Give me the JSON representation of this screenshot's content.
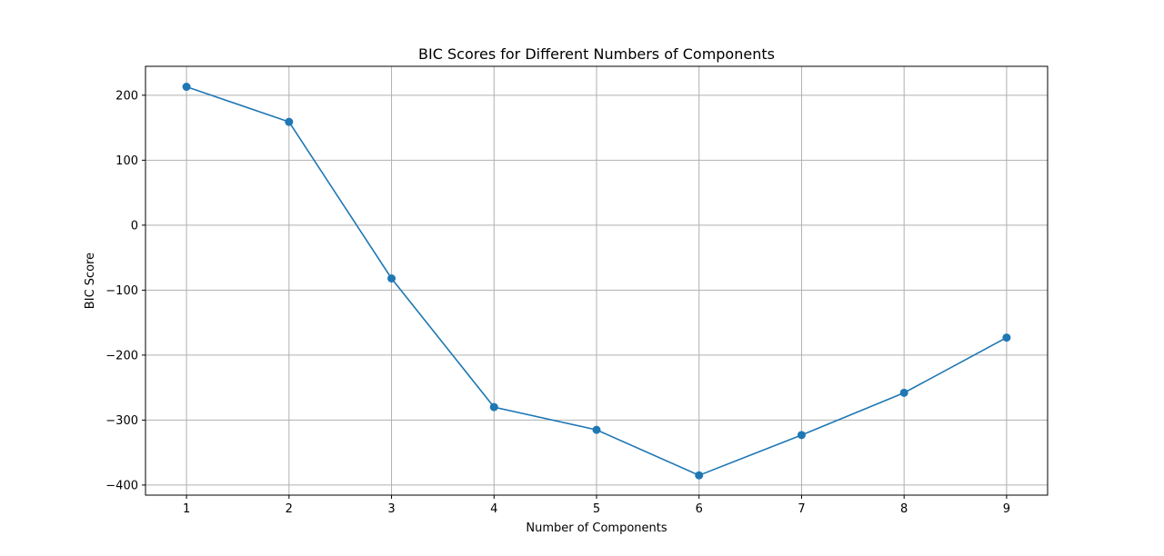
{
  "chart_data": {
    "type": "line",
    "title": "BIC Scores for Different Numbers of Components",
    "xlabel": "Number of Components",
    "ylabel": "BIC Score",
    "x": [
      1,
      2,
      3,
      4,
      5,
      6,
      7,
      8,
      9
    ],
    "series": [
      {
        "values": [
          213,
          159,
          -82,
          -280,
          -315,
          -385,
          -323,
          -258,
          -173
        ],
        "color": "#1f77b4",
        "marker": "circle"
      }
    ],
    "xticks": [
      "1",
      "2",
      "3",
      "4",
      "5",
      "6",
      "7",
      "8",
      "9"
    ],
    "yticks": [
      {
        "value": 200,
        "label": "200"
      },
      {
        "value": 100,
        "label": "100"
      },
      {
        "value": 0,
        "label": "0"
      },
      {
        "value": -100,
        "label": "−100"
      },
      {
        "value": -200,
        "label": "−200"
      },
      {
        "value": -300,
        "label": "−300"
      },
      {
        "value": -400,
        "label": "−400"
      }
    ],
    "xlim": [
      0.6,
      9.4
    ],
    "ylim": [
      -415.5,
      244.5
    ],
    "grid": true
  }
}
